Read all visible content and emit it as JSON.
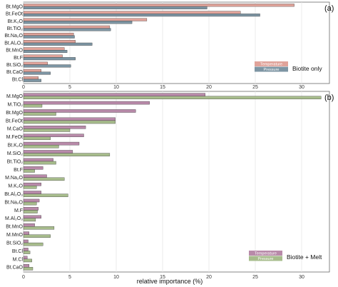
{
  "chart_data": [
    {
      "type": "bar",
      "orientation": "horizontal",
      "panel_label": "(a)",
      "legend_caption": "Biotite only",
      "categories": [
        "Bt.MgO",
        "Bt.FeOt",
        "Bt.K2O",
        "Bt.TiO2",
        "Bt.Na2O",
        "Bt.Al2O3",
        "Bt.MnO",
        "Bt.F",
        "Bt.SiO2",
        "Bt.CaO",
        "Bt.Cl"
      ],
      "category_labels": [
        "Bt.MgO",
        "Bt.FeOt",
        "Bt.K₂O",
        "Bt.TiO₂",
        "Bt.Na₂O",
        "Bt.Al₂O₃",
        "Bt.MnO",
        "Bt.F",
        "Bt.SiO₂",
        "Bt.CaO",
        "Bt.Cl"
      ],
      "series": [
        {
          "name": "Temperature",
          "color": "#e0a39a",
          "values": [
            29.2,
            23.4,
            13.3,
            9.3,
            5.4,
            5.6,
            4.4,
            4.2,
            2.6,
            1.9,
            1.6
          ]
        },
        {
          "name": "Pressure",
          "color": "#7d95a3",
          "values": [
            19.8,
            25.5,
            11.7,
            9.4,
            5.5,
            7.4,
            4.7,
            5.6,
            5.1,
            2.9,
            1.9
          ]
        }
      ],
      "xlim": [
        0,
        33
      ],
      "xticks": [
        0,
        5,
        10,
        15,
        20,
        25,
        30
      ],
      "grid": true,
      "legend_position": "bottom-right"
    },
    {
      "type": "bar",
      "orientation": "horizontal",
      "panel_label": "(b)",
      "legend_caption": "Biotite + Melt",
      "categories": [
        "M.MgO",
        "M.TiO2",
        "Bt.MgO",
        "Bt.FeOt",
        "M.CaO",
        "M.FeOt",
        "Bt.K2O",
        "M.SiO2",
        "Bt.TiO2",
        "Bt.F",
        "M.Na2O",
        "M.K2O",
        "Bt.Al2O3",
        "Bt.Na2O",
        "M.F",
        "M.Al2O3",
        "Bt.MnO",
        "M.MnO",
        "Bt.SiO2",
        "Bt.Cl",
        "M.Cl",
        "Bt.CaO"
      ],
      "category_labels": [
        "M.MgO",
        "M.TiO₂",
        "Bt.MgO",
        "Bt.FeOt",
        "M.CaO",
        "M.FeOt",
        "Bt.K₂O",
        "M.SiO₂",
        "Bt.TiO₂",
        "Bt.F",
        "M.Na₂O",
        "M.K₂O",
        "Bt.Al₂O₃",
        "Bt.Na₂O",
        "M.F",
        "M.Al₂O₃",
        "Bt.MnO",
        "M.MnO",
        "Bt.SiO₂",
        "Bt.Cl",
        "M.Cl",
        "Bt.CaO"
      ],
      "series": [
        {
          "name": "Temperature",
          "color": "#b88aa9",
          "values": [
            19.6,
            13.6,
            12.1,
            9.9,
            6.7,
            6.5,
            6.0,
            5.3,
            3.2,
            2.1,
            2.5,
            1.9,
            1.9,
            1.7,
            1.6,
            1.9,
            1.2,
            0.6,
            0.5,
            0.5,
            0.4,
            0.6
          ]
        },
        {
          "name": "Pressure",
          "color": "#a7bc8c",
          "values": [
            32.1,
            2.0,
            3.5,
            9.9,
            5.0,
            2.9,
            3.8,
            9.3,
            3.5,
            1.2,
            4.4,
            1.4,
            4.8,
            1.4,
            1.5,
            1.3,
            3.3,
            2.9,
            2.1,
            0.7,
            0.9,
            1.0
          ]
        }
      ],
      "xlim": [
        0,
        33
      ],
      "xticks": [
        0,
        5,
        10,
        15,
        20,
        25,
        30
      ],
      "grid": true,
      "legend_position": "bottom-right"
    }
  ],
  "x_axis_title": "relative importance (%)"
}
